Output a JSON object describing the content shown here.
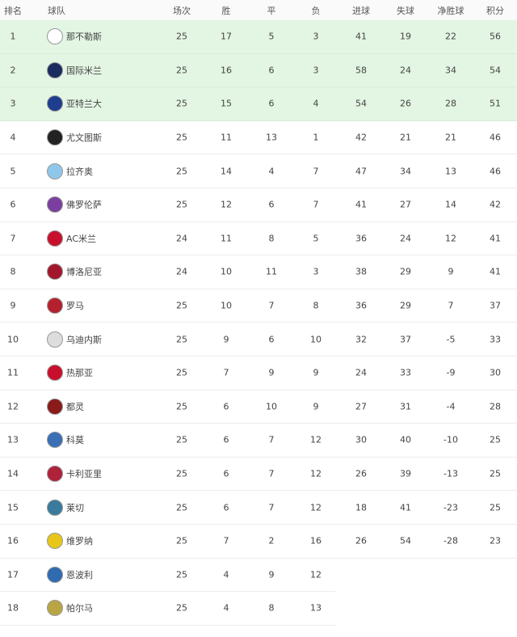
{
  "headers": [
    "排名",
    "球队",
    "场次",
    "胜",
    "平",
    "负",
    "进球",
    "失球",
    "净胜球",
    "积分"
  ],
  "rows": [
    {
      "rank": "1",
      "team": "那不勒斯",
      "logo": "napoli-logo",
      "color": "#ffffff",
      "p": "25",
      "w": "17",
      "d": "5",
      "l": "3",
      "gf": "41",
      "ga": "19",
      "gd": "22",
      "pts": "56"
    },
    {
      "rank": "2",
      "team": "国际米兰",
      "logo": "inter-logo",
      "color": "#1a2b5e",
      "p": "25",
      "w": "16",
      "d": "6",
      "l": "3",
      "gf": "58",
      "ga": "24",
      "gd": "34",
      "pts": "54"
    },
    {
      "rank": "3",
      "team": "亚特兰大",
      "logo": "atalanta-logo",
      "color": "#1e3d8f",
      "p": "25",
      "w": "15",
      "d": "6",
      "l": "4",
      "gf": "54",
      "ga": "26",
      "gd": "28",
      "pts": "51"
    },
    {
      "rank": "4",
      "team": "尤文图斯",
      "logo": "juventus-logo",
      "color": "#222222",
      "p": "25",
      "w": "11",
      "d": "13",
      "l": "1",
      "gf": "42",
      "ga": "21",
      "gd": "21",
      "pts": "46"
    },
    {
      "rank": "5",
      "team": "拉齐奥",
      "logo": "lazio-logo",
      "color": "#8fc7ea",
      "p": "25",
      "w": "14",
      "d": "4",
      "l": "7",
      "gf": "47",
      "ga": "34",
      "gd": "13",
      "pts": "46"
    },
    {
      "rank": "6",
      "team": "佛罗伦萨",
      "logo": "fiorentina-logo",
      "color": "#7b3fa0",
      "p": "25",
      "w": "12",
      "d": "6",
      "l": "7",
      "gf": "41",
      "ga": "27",
      "gd": "14",
      "pts": "42"
    },
    {
      "rank": "7",
      "team": "AC米兰",
      "logo": "milan-logo",
      "color": "#c8102e",
      "p": "24",
      "w": "11",
      "d": "8",
      "l": "5",
      "gf": "36",
      "ga": "24",
      "gd": "12",
      "pts": "41"
    },
    {
      "rank": "8",
      "team": "博洛尼亚",
      "logo": "bologna-logo",
      "color": "#a3162b",
      "p": "24",
      "w": "10",
      "d": "11",
      "l": "3",
      "gf": "38",
      "ga": "29",
      "gd": "9",
      "pts": "41"
    },
    {
      "rank": "9",
      "team": "罗马",
      "logo": "roma-logo",
      "color": "#b5202e",
      "p": "25",
      "w": "10",
      "d": "7",
      "l": "8",
      "gf": "36",
      "ga": "29",
      "gd": "7",
      "pts": "37"
    },
    {
      "rank": "10",
      "team": "乌迪内斯",
      "logo": "udinese-logo",
      "color": "#dddddd",
      "p": "25",
      "w": "9",
      "d": "6",
      "l": "10",
      "gf": "32",
      "ga": "37",
      "gd": "-5",
      "pts": "33"
    },
    {
      "rank": "11",
      "team": "热那亚",
      "logo": "genoa-logo",
      "color": "#c8102e",
      "p": "25",
      "w": "7",
      "d": "9",
      "l": "9",
      "gf": "24",
      "ga": "33",
      "gd": "-9",
      "pts": "30"
    },
    {
      "rank": "12",
      "team": "都灵",
      "logo": "torino-logo",
      "color": "#8b1a1a",
      "p": "25",
      "w": "6",
      "d": "10",
      "l": "9",
      "gf": "27",
      "ga": "31",
      "gd": "-4",
      "pts": "28"
    },
    {
      "rank": "13",
      "team": "科莫",
      "logo": "como-logo",
      "color": "#3a6fb5",
      "p": "25",
      "w": "6",
      "d": "7",
      "l": "12",
      "gf": "30",
      "ga": "40",
      "gd": "-10",
      "pts": "25"
    },
    {
      "rank": "14",
      "team": "卡利亚里",
      "logo": "cagliari-logo",
      "color": "#b0213a",
      "p": "25",
      "w": "6",
      "d": "7",
      "l": "12",
      "gf": "26",
      "ga": "39",
      "gd": "-13",
      "pts": "25"
    },
    {
      "rank": "15",
      "team": "莱切",
      "logo": "lecce-logo",
      "color": "#3a7a9c",
      "p": "25",
      "w": "6",
      "d": "7",
      "l": "12",
      "gf": "18",
      "ga": "41",
      "gd": "-23",
      "pts": "25"
    },
    {
      "rank": "16",
      "team": "维罗纳",
      "logo": "verona-logo",
      "color": "#e8c619",
      "p": "25",
      "w": "7",
      "d": "2",
      "l": "16",
      "gf": "26",
      "ga": "54",
      "gd": "-28",
      "pts": "23"
    },
    {
      "rank": "17",
      "team": "恩波利",
      "logo": "empoli-logo",
      "color": "#2f6bb0",
      "p": "25",
      "w": "4",
      "d": "9",
      "l": "12",
      "gf": "",
      "ga": "",
      "gd": "",
      "pts": ""
    },
    {
      "rank": "18",
      "team": "帕尔马",
      "logo": "parma-logo",
      "color": "#b9a544",
      "p": "25",
      "w": "4",
      "d": "8",
      "l": "13",
      "gf": "",
      "ga": "",
      "gd": "",
      "pts": ""
    }
  ],
  "highlight_color": "#e3f5e3"
}
